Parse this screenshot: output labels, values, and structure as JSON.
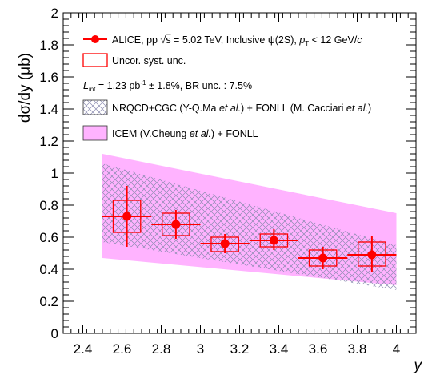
{
  "chart_data": {
    "type": "scatter",
    "xlabel": "y",
    "ylabel": "dσ/dy (μb)",
    "xlim": [
      2.3,
      4.1
    ],
    "ylim": [
      0,
      2.0
    ],
    "x_ticks": [
      "2.4",
      "2.6",
      "2.8",
      "3",
      "3.2",
      "3.4",
      "3.6",
      "3.8",
      "4"
    ],
    "y_ticks": [
      "0",
      "0.2",
      "0.4",
      "0.6",
      "0.8",
      "1",
      "1.2",
      "1.4",
      "1.6",
      "1.8",
      "2"
    ],
    "grid": false,
    "legend_position": "top",
    "series": [
      {
        "name": "ALICE, pp √s = 5.02 TeV, Inclusive ψ(2S), pT < 12 GeV/c",
        "kind": "points",
        "color": "#ff0000",
        "points": [
          {
            "x": 2.625,
            "y": 0.73,
            "x_lo": 2.5,
            "x_hi": 2.75,
            "stat_lo": 0.54,
            "stat_hi": 0.92,
            "syst_lo": 0.63,
            "syst_hi": 0.83
          },
          {
            "x": 2.875,
            "y": 0.68,
            "x_lo": 2.75,
            "x_hi": 3.0,
            "stat_lo": 0.59,
            "stat_hi": 0.77,
            "syst_lo": 0.61,
            "syst_hi": 0.75
          },
          {
            "x": 3.125,
            "y": 0.56,
            "x_lo": 3.0,
            "x_hi": 3.25,
            "stat_lo": 0.5,
            "stat_hi": 0.62,
            "syst_lo": 0.51,
            "syst_hi": 0.6
          },
          {
            "x": 3.375,
            "y": 0.58,
            "x_lo": 3.25,
            "x_hi": 3.5,
            "stat_lo": 0.52,
            "stat_hi": 0.65,
            "syst_lo": 0.54,
            "syst_hi": 0.62
          },
          {
            "x": 3.625,
            "y": 0.47,
            "x_lo": 3.5,
            "x_hi": 3.75,
            "stat_lo": 0.4,
            "stat_hi": 0.54,
            "syst_lo": 0.42,
            "syst_hi": 0.52
          },
          {
            "x": 3.875,
            "y": 0.49,
            "x_lo": 3.75,
            "x_hi": 4.0,
            "stat_lo": 0.38,
            "stat_hi": 0.61,
            "syst_lo": 0.42,
            "syst_hi": 0.57
          }
        ]
      },
      {
        "name": "NRQCD+CGC (Y-Q.Ma et al.) + FONLL (M. Cacciari et al.)",
        "kind": "band-hatched",
        "color": "#8b8bb0",
        "x": [
          2.5,
          4.0
        ],
        "upper": [
          1.06,
          0.55
        ],
        "lower": [
          0.57,
          0.27
        ]
      },
      {
        "name": "ICEM (V.Cheung et al.) + FONLL",
        "kind": "band-filled",
        "color": "#ffb3ff",
        "x": [
          2.5,
          4.0
        ],
        "upper": [
          1.12,
          0.75
        ],
        "lower": [
          0.47,
          0.3
        ]
      }
    ]
  },
  "legend": {
    "alice_prefix": "ALICE, pp ",
    "sqrt_symbol": "√",
    "s_symbol": "s",
    "alice_energy": " = 5.02 TeV, Inclusive ψ(2S), ",
    "p_symbol": "p",
    "t_subscript": "T",
    "alice_suffix": " < 12 GeV/",
    "c_symbol": "c",
    "syst_label": "Uncor. syst. unc.",
    "lumi_L": "L",
    "lumi_sub": "int",
    "lumi_value": " = 1.23 pb",
    "lumi_exp": "-1",
    "lumi_rest": " ± 1.8%, BR unc. : 7.5%",
    "nrqcd_a": "NRQCD+CGC (Y-Q.Ma ",
    "etal_1": "et al.",
    "nrqcd_b": ") + FONLL (M. Cacciari ",
    "etal_2": "et al.",
    "nrqcd_c": ")",
    "icem_a": "ICEM (V.Cheung ",
    "etal_3": "et al.",
    "icem_b": ") + FONLL"
  },
  "colors": {
    "data": "#ff0000",
    "nrqcd_hatch": "#8b8bb0",
    "icem_fill": "#ffb3ff"
  }
}
